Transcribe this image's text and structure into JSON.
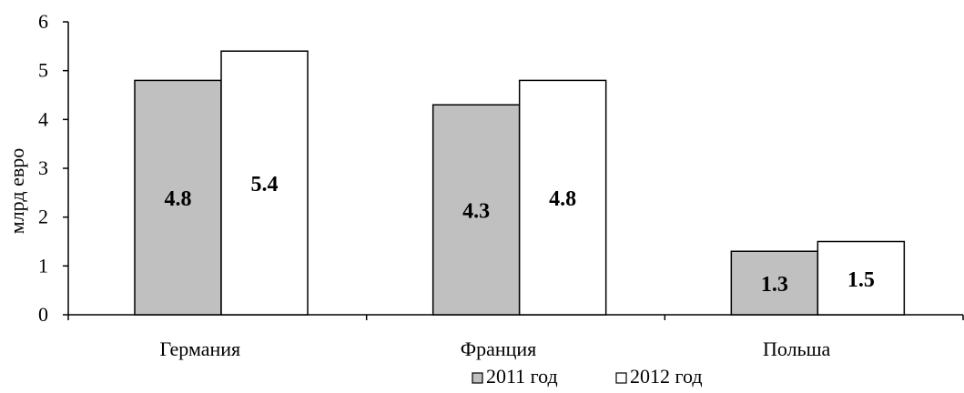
{
  "chart_data": {
    "type": "bar",
    "ylabel": "млрд евро",
    "xlabel": "",
    "ylim": [
      0,
      6
    ],
    "yticks": [
      "0",
      "1",
      "2",
      "3",
      "4",
      "5",
      "6"
    ],
    "categories": [
      "Германия",
      "Франция",
      "Польша"
    ],
    "series": [
      {
        "name": "2011 год",
        "values": [
          4.8,
          4.3,
          1.3
        ],
        "labels": [
          "4.8",
          "4.3",
          "1.3"
        ],
        "color": "#c0c0c0"
      },
      {
        "name": "2012 год",
        "values": [
          5.4,
          4.8,
          1.5
        ],
        "labels": [
          "5.4",
          "4.8",
          "1.5"
        ],
        "color": "#ffffff"
      }
    ],
    "grid": false,
    "legend_position": "bottom"
  }
}
